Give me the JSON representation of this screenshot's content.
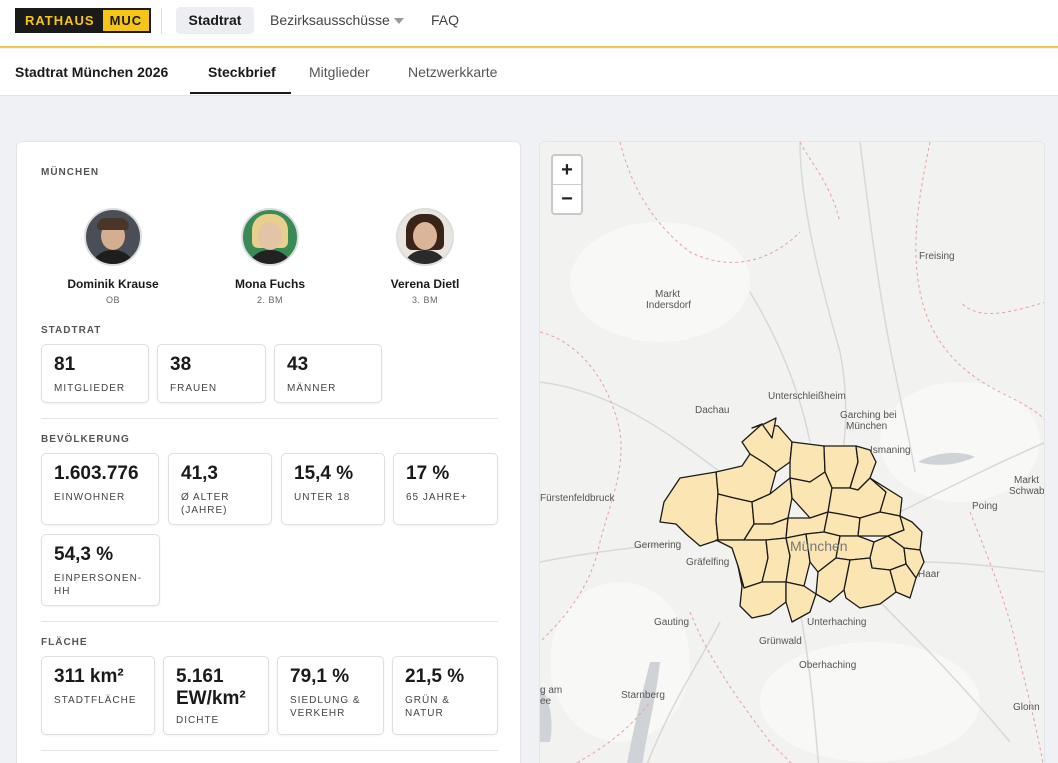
{
  "header": {
    "logo_left": "RATHAUS",
    "logo_right": "MUC",
    "nav": {
      "stadtrat": "Stadtrat",
      "bezirk": "Bezirksausschüsse",
      "faq": "FAQ"
    }
  },
  "subnav": {
    "title": "Stadtrat München 2026",
    "tabs": {
      "steckbrief": "Steckbrief",
      "mitglieder": "Mitglieder",
      "netzwerk": "Netzwerkkarte"
    },
    "active_tab": "Steckbrief"
  },
  "city": {
    "label": "MÜNCHEN",
    "people": [
      {
        "name": "Dominik Krause",
        "role": "OB"
      },
      {
        "name": "Mona Fuchs",
        "role": "2. BM"
      },
      {
        "name": "Verena Dietl",
        "role": "3. BM"
      }
    ]
  },
  "stadtrat": {
    "label": "STADTRAT",
    "stats": [
      {
        "value": "81",
        "label": "MITGLIEDER"
      },
      {
        "value": "38",
        "label": "FRAUEN"
      },
      {
        "value": "43",
        "label": "MÄNNER"
      }
    ]
  },
  "bevoelkerung": {
    "label": "BEVÖLKERUNG",
    "stats": [
      {
        "value": "1.603.776",
        "label": "EINWOHNER"
      },
      {
        "value": "41,3",
        "label": "Ø ALTER (JAHRE)"
      },
      {
        "value": "15,4 %",
        "label": "UNTER 18"
      },
      {
        "value": "17 %",
        "label": "65 JAHRE+"
      },
      {
        "value": "54,3 %",
        "label": "EINPERSONEN-HH"
      }
    ]
  },
  "flaeche": {
    "label": "FLÄCHE",
    "stats": [
      {
        "value": "311 km²",
        "label": "STADTFLÄCHE"
      },
      {
        "value": "5.161 EW/km²",
        "label": "DICHTE"
      },
      {
        "value": "79,1 %",
        "label": "SIEDLUNG & VERKEHR"
      },
      {
        "value": "21,5 %",
        "label": "GRÜN & NATUR"
      }
    ]
  },
  "map": {
    "zoom_in": "+",
    "zoom_out": "−",
    "places": {
      "freising": "Freising",
      "markt_indersdorf_1": "Markt",
      "markt_indersdorf_2": "Indersdorf",
      "unterschleissheim": "Unterschleißheim",
      "dachau": "Dachau",
      "garching_1": "Garching bei",
      "garching_2": "München",
      "ismaning": "Ismaning",
      "markt_schwaben_1": "Markt",
      "markt_schwaben_2": "Schwabe",
      "fuerstenfeldbruck": "Fürstenfeldbruck",
      "poing": "Poing",
      "germering": "Germering",
      "graefelfing": "Gräfelfing",
      "muenchen": "München",
      "haar": "Haar",
      "gauting": "Gauting",
      "unterhaching": "Unterhaching",
      "gruenwald": "Grünwald",
      "oberhaching": "Oberhaching",
      "starnberg": "Starnberg",
      "glonn": "Glonn",
      "am_see_1": "g am",
      "am_see_2": "ee"
    },
    "colors": {
      "district_fill": "#fbe6b3",
      "district_stroke": "#1a1a1a",
      "border_dash": "#e8a0a0"
    }
  }
}
